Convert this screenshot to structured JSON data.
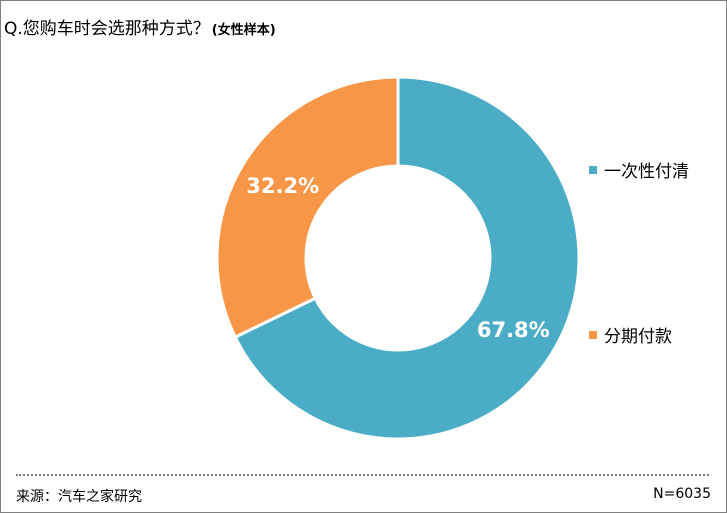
{
  "title": {
    "main": "Q.您购车时会选那种方式？",
    "sub": "(女性样本)"
  },
  "chart_data": {
    "type": "pie",
    "subtype": "donut",
    "slices": [
      {
        "label": "一次性付清",
        "value": 67.8,
        "value_label": "67.8%",
        "color": "#4BACC6"
      },
      {
        "label": "分期付款",
        "value": 32.2,
        "value_label": "32.2%",
        "color": "#F79646"
      }
    ],
    "legend_position": "right"
  },
  "footer": {
    "source": "来源：汽车之家研究",
    "sample_size": "N=6035"
  }
}
